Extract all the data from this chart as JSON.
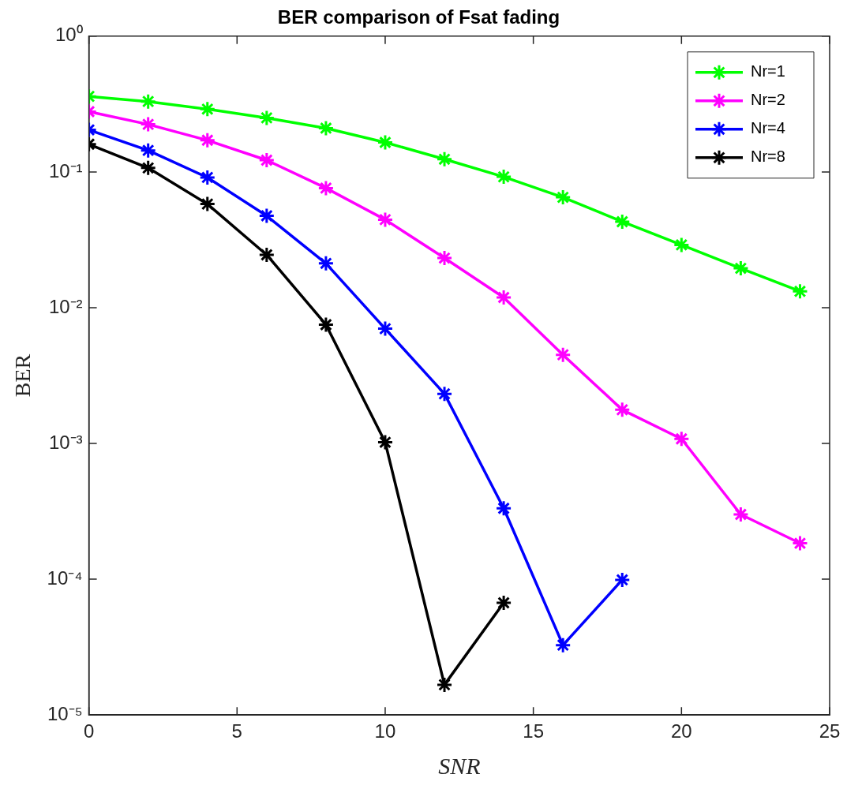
{
  "chart_data": {
    "type": "line",
    "title": "BER comparison of Fsat fading",
    "xlabel": "SNR",
    "ylabel": "BER",
    "log": "y",
    "grid": false,
    "legend": "top right",
    "marker": "cross",
    "line_style": "solid",
    "xlim": [
      0,
      25
    ],
    "xticks": [
      0,
      5,
      10,
      15,
      20,
      25
    ],
    "ylim": [
      1e-05,
      1
    ],
    "yticks": [
      {
        "value": 1,
        "label": "10⁰"
      },
      {
        "value": 0.1,
        "label": "10⁻¹"
      },
      {
        "value": 0.01,
        "label": "10⁻²"
      },
      {
        "value": 0.001,
        "label": "10⁻³"
      },
      {
        "value": 0.0001,
        "label": "10⁻⁴"
      },
      {
        "value": 1e-05,
        "label": "10⁻⁵"
      }
    ],
    "series": [
      {
        "name": "Nr=1",
        "color": "#00ff00",
        "x": [
          0,
          2,
          4,
          6,
          8,
          10,
          12,
          14,
          16,
          18,
          20,
          22,
          24
        ],
        "values": [
          0.36,
          0.33,
          0.29,
          0.25,
          0.21,
          0.165,
          0.124,
          0.092,
          0.065,
          0.043,
          0.029,
          0.0195,
          0.0132
        ]
      },
      {
        "name": "Nr=2",
        "color": "#ff00ff",
        "x": [
          0,
          2,
          4,
          6,
          8,
          10,
          12,
          14,
          16,
          18,
          20,
          22,
          24
        ],
        "values": [
          0.278,
          0.224,
          0.171,
          0.122,
          0.076,
          0.0445,
          0.0232,
          0.0119,
          0.0045,
          0.00177,
          0.00108,
          0.0003,
          0.000184
        ]
      },
      {
        "name": "Nr=4",
        "color": "#0000ff",
        "x": [
          0,
          2,
          4,
          6,
          8,
          10,
          12,
          14,
          16,
          18
        ],
        "values": [
          0.204,
          0.144,
          0.091,
          0.0475,
          0.0212,
          0.007,
          0.00232,
          0.000333,
          3.27e-05,
          9.89e-05
        ]
      },
      {
        "name": "Nr=8",
        "color": "#000000",
        "x": [
          0,
          2,
          4,
          6,
          8,
          10,
          12,
          14
        ],
        "values": [
          0.16,
          0.107,
          0.058,
          0.0245,
          0.0075,
          0.00102,
          1.67e-05,
          6.7e-05
        ]
      }
    ]
  }
}
